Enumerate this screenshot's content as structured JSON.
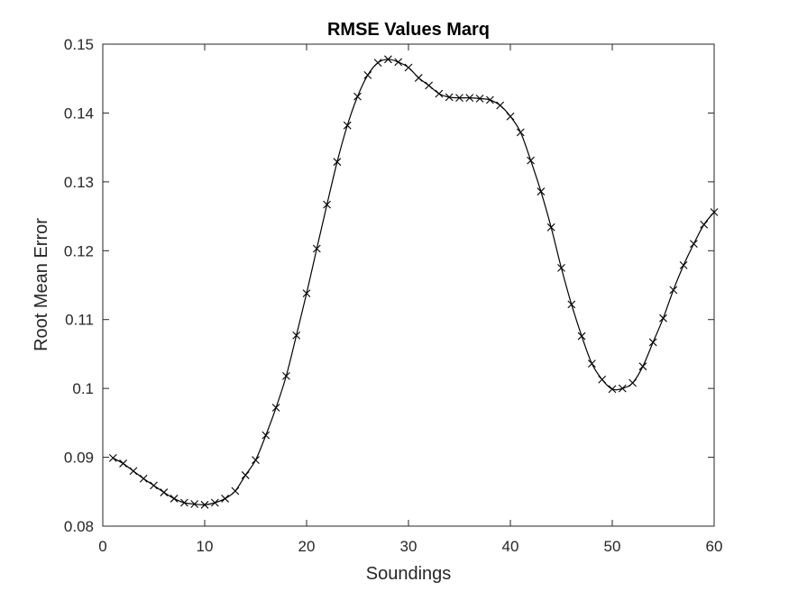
{
  "chart_data": {
    "type": "line",
    "title": "RMSE Values Marq",
    "xlabel": "Soundings",
    "ylabel": "Root Mean Error",
    "xlim": [
      0,
      60
    ],
    "ylim": [
      0.08,
      0.15
    ],
    "xticks": [
      "0",
      "10",
      "20",
      "30",
      "40",
      "50",
      "60"
    ],
    "yticks": [
      "0.08",
      "0.09",
      "0.1",
      "0.11",
      "0.12",
      "0.13",
      "0.14",
      "0.15"
    ],
    "grid": false,
    "marker": "x",
    "line_color": "#000000",
    "series": [
      {
        "x": [
          1,
          2,
          3,
          4,
          5,
          6,
          7,
          8,
          9,
          10,
          11,
          12,
          13,
          14,
          15,
          16,
          17,
          18,
          19,
          20,
          21,
          22,
          23,
          24,
          25,
          26,
          27,
          28,
          29,
          30,
          31,
          32,
          33,
          34,
          35,
          36,
          37,
          38,
          39,
          40,
          41,
          42,
          43,
          44,
          45,
          46,
          47,
          48,
          49,
          50,
          51,
          52,
          53,
          54,
          55,
          56,
          57,
          58,
          59,
          60
        ],
        "values": [
          0.0899,
          0.0891,
          0.088,
          0.0869,
          0.0859,
          0.0849,
          0.084,
          0.0834,
          0.0832,
          0.0831,
          0.0834,
          0.084,
          0.0851,
          0.0874,
          0.0896,
          0.0932,
          0.0972,
          0.1018,
          0.1077,
          0.1138,
          0.1203,
          0.1267,
          0.1329,
          0.1382,
          0.1424,
          0.1455,
          0.1473,
          0.1478,
          0.1474,
          0.1466,
          0.1451,
          0.144,
          0.1428,
          0.1423,
          0.1422,
          0.1422,
          0.1421,
          0.1419,
          0.1411,
          0.1395,
          0.1372,
          0.1331,
          0.1286,
          0.1234,
          0.1175,
          0.1122,
          0.1076,
          0.1036,
          0.1013,
          0.0999,
          0.1,
          0.1008,
          0.1032,
          0.1067,
          0.1102,
          0.1143,
          0.1179,
          0.121,
          0.1238,
          0.1256
        ]
      }
    ]
  }
}
